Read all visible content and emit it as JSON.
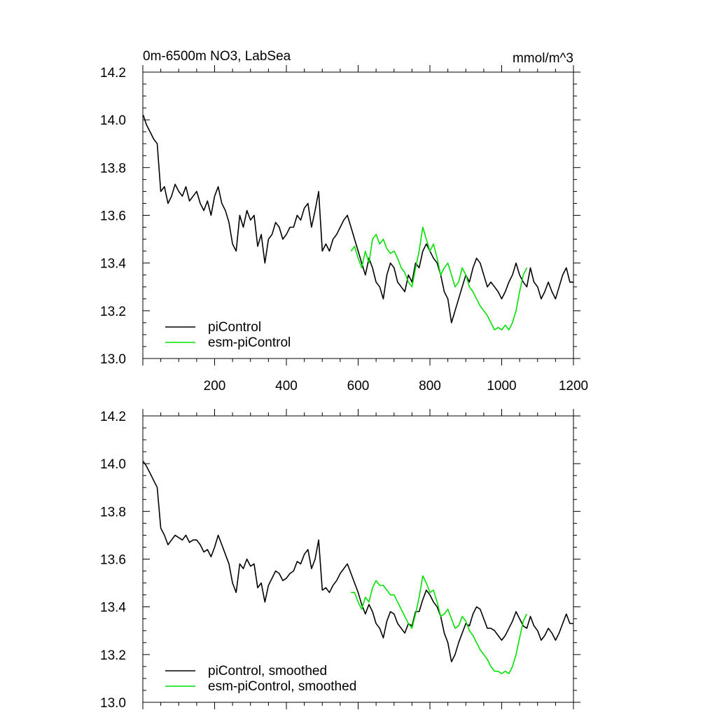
{
  "chart_data": [
    {
      "type": "line",
      "title": "0m-6500m NO3, LabSea",
      "units": "mmol/m^3",
      "xlim": [
        0,
        1200
      ],
      "ylim": [
        13.0,
        14.2
      ],
      "x_ticks": [
        "200",
        "400",
        "600",
        "800",
        "1000",
        "1200"
      ],
      "y_ticks": [
        "13.0",
        "13.2",
        "13.4",
        "13.6",
        "13.8",
        "14.0",
        "14.2"
      ],
      "legend_position": "bottom-left",
      "series": [
        {
          "name": "piControl",
          "color": "#000000",
          "x": [
            1,
            10,
            20,
            30,
            40,
            50,
            60,
            70,
            80,
            90,
            100,
            110,
            120,
            130,
            140,
            150,
            160,
            170,
            180,
            190,
            200,
            210,
            220,
            230,
            240,
            250,
            260,
            270,
            280,
            290,
            300,
            310,
            320,
            330,
            340,
            350,
            360,
            370,
            380,
            390,
            400,
            410,
            420,
            430,
            440,
            450,
            460,
            470,
            480,
            490,
            500,
            510,
            520,
            530,
            540,
            550,
            560,
            570,
            580,
            590,
            600,
            610,
            620,
            630,
            640,
            650,
            660,
            670,
            680,
            690,
            700,
            710,
            720,
            730,
            740,
            750,
            760,
            770,
            780,
            790,
            800,
            810,
            820,
            830,
            840,
            850,
            860,
            870,
            880,
            890,
            900,
            910,
            920,
            930,
            940,
            950,
            960,
            970,
            980,
            990,
            1000,
            1010,
            1020,
            1030,
            1040,
            1050,
            1060,
            1070,
            1080,
            1090,
            1100,
            1110,
            1120,
            1130,
            1140,
            1150,
            1160,
            1170,
            1180,
            1190,
            1200
          ],
          "values": [
            14.02,
            13.98,
            13.95,
            13.92,
            13.9,
            13.7,
            13.72,
            13.65,
            13.68,
            13.73,
            13.7,
            13.68,
            13.72,
            13.66,
            13.68,
            13.7,
            13.65,
            13.62,
            13.66,
            13.6,
            13.68,
            13.72,
            13.65,
            13.62,
            13.57,
            13.48,
            13.45,
            13.6,
            13.55,
            13.62,
            13.58,
            13.6,
            13.47,
            13.52,
            13.4,
            13.5,
            13.52,
            13.57,
            13.55,
            13.5,
            13.52,
            13.55,
            13.55,
            13.6,
            13.58,
            13.63,
            13.65,
            13.55,
            13.62,
            13.7,
            13.45,
            13.48,
            13.45,
            13.5,
            13.52,
            13.55,
            13.58,
            13.6,
            13.55,
            13.5,
            13.45,
            13.4,
            13.35,
            13.42,
            13.38,
            13.32,
            13.3,
            13.25,
            13.35,
            13.4,
            13.38,
            13.32,
            13.3,
            13.28,
            13.35,
            13.32,
            13.4,
            13.38,
            13.45,
            13.48,
            13.45,
            13.42,
            13.4,
            13.35,
            13.28,
            13.25,
            13.15,
            13.2,
            13.25,
            13.3,
            13.35,
            13.32,
            13.38,
            13.42,
            13.4,
            13.35,
            13.3,
            13.32,
            13.3,
            13.28,
            13.25,
            13.28,
            13.32,
            13.35,
            13.4,
            13.35,
            13.32,
            13.3,
            13.38,
            13.32,
            13.3,
            13.25,
            13.28,
            13.32,
            13.28,
            13.25,
            13.3,
            13.35,
            13.38,
            13.32,
            13.32
          ]
        },
        {
          "name": "esm-piControl",
          "color": "#00e000",
          "x": [
            580,
            590,
            600,
            610,
            620,
            630,
            640,
            650,
            660,
            670,
            680,
            690,
            700,
            710,
            720,
            730,
            740,
            750,
            760,
            770,
            780,
            790,
            800,
            810,
            820,
            830,
            840,
            850,
            860,
            870,
            880,
            890,
            900,
            910,
            920,
            930,
            940,
            950,
            960,
            970,
            980,
            990,
            1000,
            1010,
            1020,
            1030,
            1040,
            1050,
            1060,
            1070
          ],
          "values": [
            13.45,
            13.47,
            13.42,
            13.38,
            13.45,
            13.4,
            13.5,
            13.52,
            13.48,
            13.5,
            13.46,
            13.44,
            13.45,
            13.42,
            13.38,
            13.36,
            13.32,
            13.3,
            13.38,
            13.45,
            13.55,
            13.5,
            13.45,
            13.48,
            13.42,
            13.35,
            13.38,
            13.4,
            13.35,
            13.3,
            13.32,
            13.38,
            13.35,
            13.3,
            13.28,
            13.25,
            13.22,
            13.2,
            13.18,
            13.15,
            13.12,
            13.13,
            13.12,
            13.14,
            13.12,
            13.15,
            13.2,
            13.28,
            13.35,
            13.38
          ]
        }
      ]
    },
    {
      "type": "line",
      "xlim": [
        0,
        1200
      ],
      "ylim": [
        13.0,
        14.2
      ],
      "x_ticks": [],
      "y_ticks": [
        "13.0",
        "13.2",
        "13.4",
        "13.6",
        "13.8",
        "14.0",
        "14.2"
      ],
      "legend_position": "bottom-left",
      "series": [
        {
          "name": "piControl, smoothed",
          "color": "#000000",
          "x": [
            1,
            10,
            20,
            30,
            40,
            50,
            60,
            70,
            80,
            90,
            100,
            110,
            120,
            130,
            140,
            150,
            160,
            170,
            180,
            190,
            200,
            210,
            220,
            230,
            240,
            250,
            260,
            270,
            280,
            290,
            300,
            310,
            320,
            330,
            340,
            350,
            360,
            370,
            380,
            390,
            400,
            410,
            420,
            430,
            440,
            450,
            460,
            470,
            480,
            490,
            500,
            510,
            520,
            530,
            540,
            550,
            560,
            570,
            580,
            590,
            600,
            610,
            620,
            630,
            640,
            650,
            660,
            670,
            680,
            690,
            700,
            710,
            720,
            730,
            740,
            750,
            760,
            770,
            780,
            790,
            800,
            810,
            820,
            830,
            840,
            850,
            860,
            870,
            880,
            890,
            900,
            910,
            920,
            930,
            940,
            950,
            960,
            970,
            980,
            990,
            1000,
            1010,
            1020,
            1030,
            1040,
            1050,
            1060,
            1070,
            1080,
            1090,
            1100,
            1110,
            1120,
            1130,
            1140,
            1150,
            1160,
            1170,
            1180,
            1190,
            1200
          ],
          "values": [
            14.01,
            13.99,
            13.96,
            13.93,
            13.9,
            13.73,
            13.7,
            13.66,
            13.68,
            13.7,
            13.69,
            13.68,
            13.7,
            13.67,
            13.68,
            13.68,
            13.66,
            13.63,
            13.64,
            13.61,
            13.65,
            13.7,
            13.66,
            13.62,
            13.58,
            13.5,
            13.46,
            13.58,
            13.56,
            13.6,
            13.57,
            13.58,
            13.48,
            13.5,
            13.42,
            13.49,
            13.52,
            13.55,
            13.54,
            13.51,
            13.52,
            13.54,
            13.55,
            13.59,
            13.58,
            13.62,
            13.64,
            13.56,
            13.6,
            13.68,
            13.47,
            13.48,
            13.46,
            13.49,
            13.51,
            13.54,
            13.56,
            13.58,
            13.54,
            13.5,
            13.46,
            13.41,
            13.37,
            13.41,
            13.38,
            13.33,
            13.31,
            13.27,
            13.34,
            13.38,
            13.37,
            13.33,
            13.31,
            13.29,
            13.33,
            13.32,
            13.38,
            13.38,
            13.43,
            13.47,
            13.45,
            13.42,
            13.4,
            13.36,
            13.29,
            13.25,
            13.17,
            13.2,
            13.25,
            13.29,
            13.33,
            13.32,
            13.37,
            13.4,
            13.39,
            13.35,
            13.31,
            13.31,
            13.3,
            13.28,
            13.26,
            13.28,
            13.31,
            13.34,
            13.38,
            13.35,
            13.32,
            13.31,
            13.36,
            13.32,
            13.3,
            13.26,
            13.28,
            13.31,
            13.29,
            13.26,
            13.29,
            13.33,
            13.37,
            13.33,
            13.33
          ]
        },
        {
          "name": "esm-piControl, smoothed",
          "color": "#00e000",
          "x": [
            580,
            590,
            600,
            610,
            620,
            630,
            640,
            650,
            660,
            670,
            680,
            690,
            700,
            710,
            720,
            730,
            740,
            750,
            760,
            770,
            780,
            790,
            800,
            810,
            820,
            830,
            840,
            850,
            860,
            870,
            880,
            890,
            900,
            910,
            920,
            930,
            940,
            950,
            960,
            970,
            980,
            990,
            1000,
            1010,
            1020,
            1030,
            1040,
            1050,
            1060,
            1070
          ],
          "values": [
            13.46,
            13.46,
            13.42,
            13.39,
            13.44,
            13.42,
            13.48,
            13.51,
            13.49,
            13.49,
            13.47,
            13.45,
            13.45,
            13.42,
            13.39,
            13.36,
            13.33,
            13.31,
            13.37,
            13.44,
            13.53,
            13.5,
            13.46,
            13.47,
            13.42,
            13.36,
            13.37,
            13.39,
            13.35,
            13.31,
            13.32,
            13.36,
            13.34,
            13.3,
            13.28,
            13.25,
            13.22,
            13.2,
            13.18,
            13.15,
            13.13,
            13.13,
            13.12,
            13.13,
            13.12,
            13.15,
            13.2,
            13.27,
            13.34,
            13.37
          ]
        }
      ]
    }
  ]
}
